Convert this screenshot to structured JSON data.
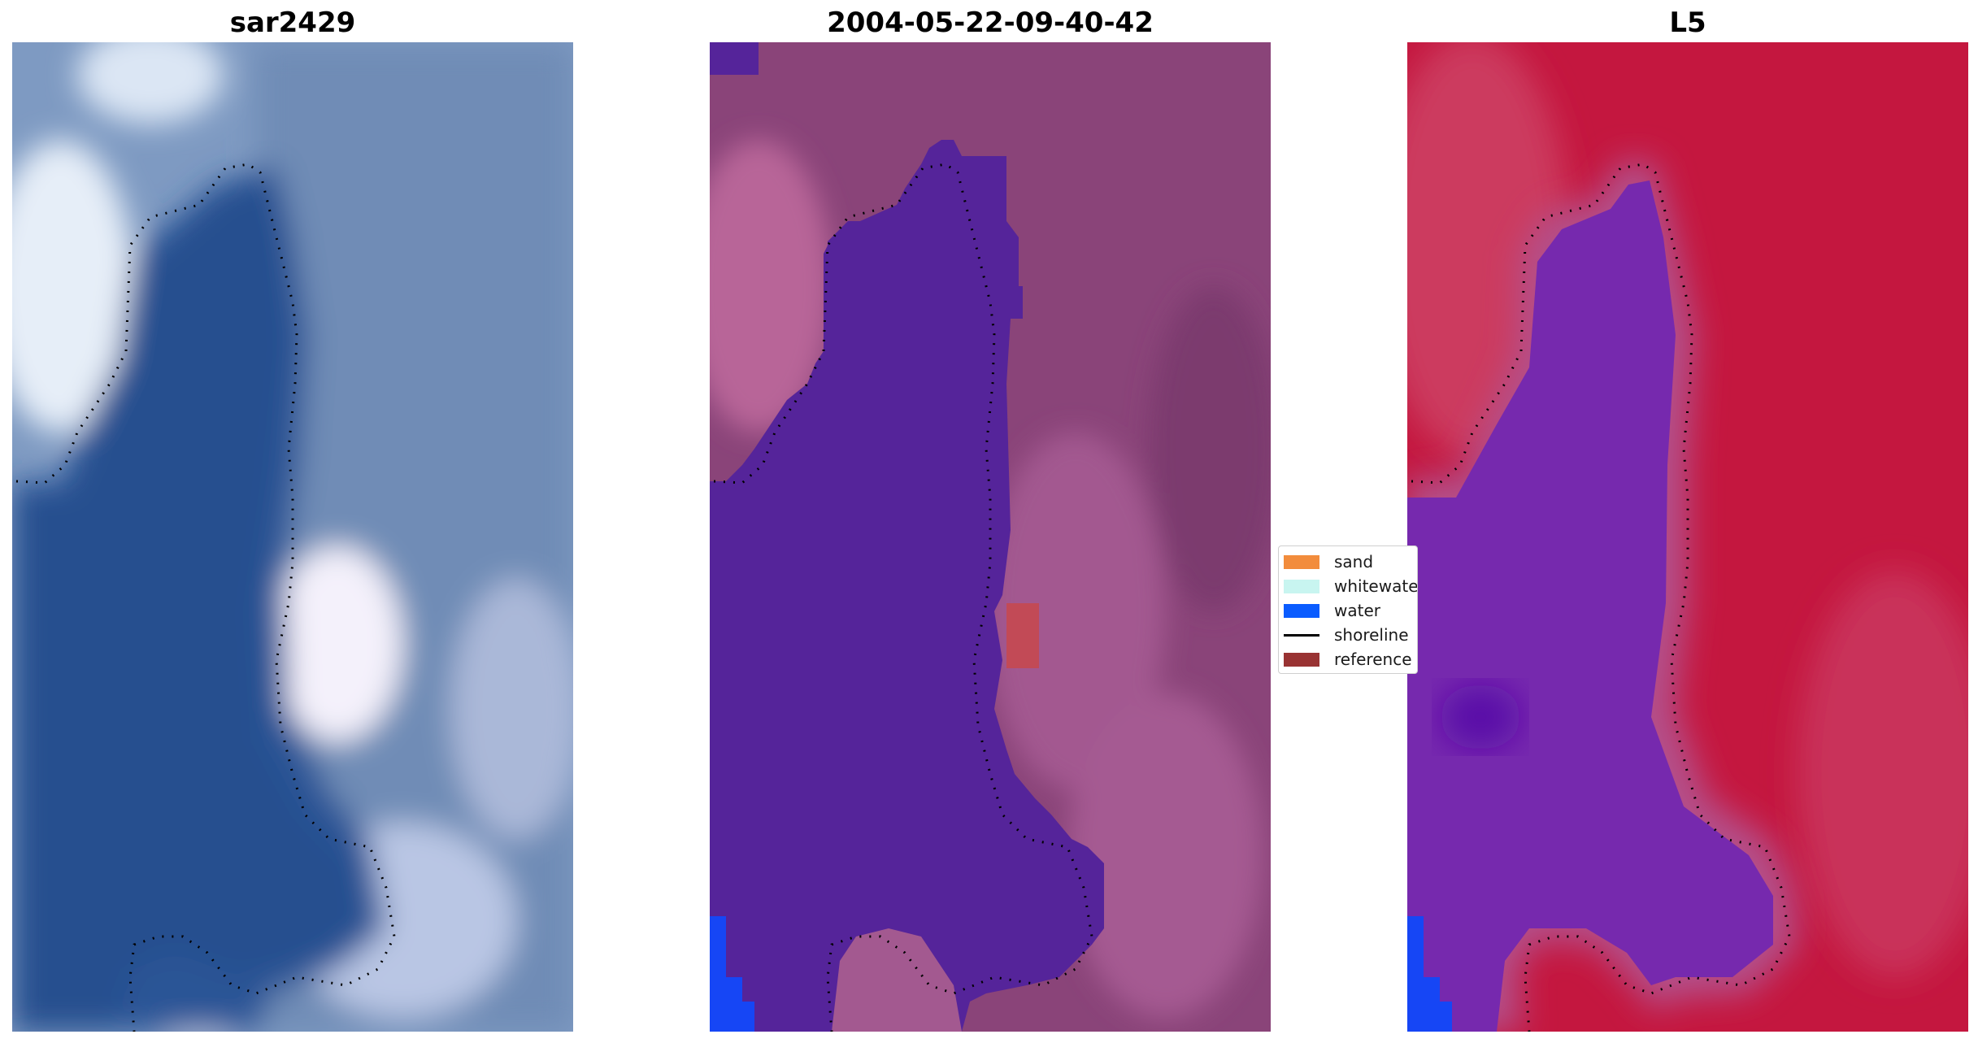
{
  "panels": [
    {
      "title": "sar2429"
    },
    {
      "title": "2004-05-22-09-40-42"
    },
    {
      "title": "L5"
    }
  ],
  "legend": [
    {
      "label": "sand",
      "color": "#f28c3c"
    },
    {
      "label": "whitewater",
      "color": "#c8f5f0"
    },
    {
      "label": "water",
      "color": "#0a5cff"
    },
    {
      "label": "shoreline",
      "color": "#000000"
    },
    {
      "label": "reference",
      "color": "#993333"
    }
  ],
  "colors": {
    "rgb_water": "#2a5596",
    "rgb_land": "#7e9ac2",
    "water_overlay": "#55249a",
    "land_pink": "#9b4f86",
    "ndwi_land": "#c4173f",
    "ndwi_water": "#7629ae",
    "reference_box": "#c24a56",
    "blue_corner": "#1646f5"
  }
}
